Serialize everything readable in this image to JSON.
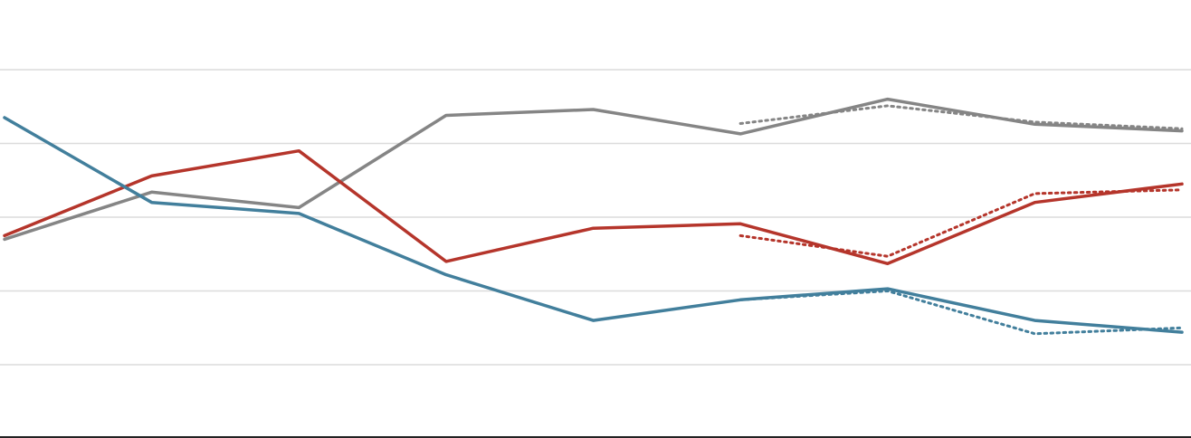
{
  "chart_data": {
    "type": "line",
    "title": "",
    "xlabel": "",
    "ylabel": "",
    "x": [
      0,
      1,
      2,
      3,
      4,
      5,
      6,
      7,
      8
    ],
    "ylim": [
      0,
      5
    ],
    "grid": true,
    "gridlines_at": [
      1,
      2,
      3,
      4,
      5
    ],
    "legend": "none",
    "series": [
      {
        "key": "gray",
        "color": "#858585",
        "style": "solid",
        "values": [
          2.7,
          3.34,
          3.13,
          4.38,
          4.46,
          4.13,
          4.6,
          4.26,
          4.17
        ]
      },
      {
        "key": "gray-projection",
        "color": "#858585",
        "style": "dotted",
        "values": [
          null,
          null,
          null,
          null,
          null,
          4.27,
          4.51,
          4.29,
          4.2
        ]
      },
      {
        "key": "red",
        "color": "#b5352b",
        "style": "solid",
        "values": [
          2.75,
          3.56,
          3.9,
          2.4,
          2.85,
          2.91,
          2.37,
          3.2,
          3.45
        ]
      },
      {
        "key": "red-projection",
        "color": "#b5352b",
        "style": "dotted",
        "values": [
          null,
          null,
          null,
          null,
          null,
          2.75,
          2.47,
          3.32,
          3.37
        ]
      },
      {
        "key": "blue",
        "color": "#427f9c",
        "style": "solid",
        "values": [
          4.35,
          3.2,
          3.05,
          2.22,
          1.6,
          1.88,
          2.03,
          1.6,
          1.44
        ]
      },
      {
        "key": "blue-projection",
        "color": "#427f9c",
        "style": "dotted",
        "values": [
          null,
          null,
          null,
          null,
          null,
          1.88,
          2.0,
          1.42,
          1.5
        ]
      }
    ]
  }
}
